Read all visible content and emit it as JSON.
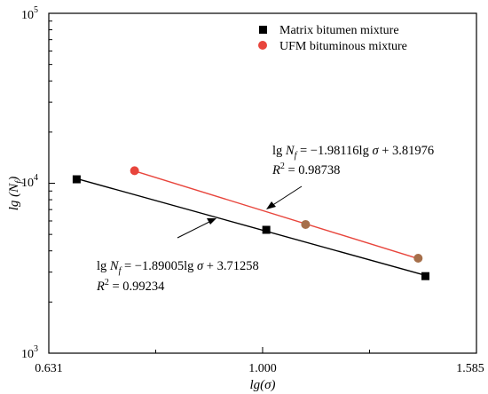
{
  "chart_data": {
    "type": "scatter",
    "xlabel": "lg(σ)",
    "ylabel": "lg (N_f)",
    "x_scale": "log",
    "y_scale": "log",
    "xlim": [
      0.631,
      1.585
    ],
    "ylim": [
      1000,
      100000
    ],
    "x_ticks": [
      {
        "value": 0.631,
        "label": "0.631"
      },
      {
        "value": 1.0,
        "label": "1.000"
      },
      {
        "value": 1.585,
        "label": "1.585"
      }
    ],
    "y_ticks": [
      {
        "value": 1000,
        "label": "10",
        "exp": "3"
      },
      {
        "value": 10000,
        "label": "10",
        "exp": "4"
      },
      {
        "value": 100000,
        "label": "10",
        "exp": "5"
      }
    ],
    "legend_position": "top-right",
    "series": [
      {
        "name": "Matrix bitumen mixture",
        "marker": "square",
        "color": "#000000",
        "points": [
          [
            0.67,
            10550
          ],
          [
            1.008,
            5320
          ],
          [
            1.42,
            2840
          ]
        ],
        "fit_x": [
          0.67,
          1.42
        ],
        "equation": "lg N_f = −1.89005lg σ + 3.71258",
        "r2": "R^2 = 0.99234"
      },
      {
        "name": "UFM bituminous mixture",
        "marker": "circle",
        "color": "#e8453c",
        "points": [
          [
            0.759,
            11850
          ],
          [
            1.097,
            5720
          ],
          [
            1.398,
            3620
          ]
        ],
        "point_colors": [
          "#e8453c",
          "#a66f4a",
          "#a66f4a"
        ],
        "fit_x": [
          0.759,
          1.398
        ],
        "equation": "lg N_f = −1.98116lg σ + 3.81976",
        "r2": "R^2 = 0.98738"
      }
    ]
  }
}
